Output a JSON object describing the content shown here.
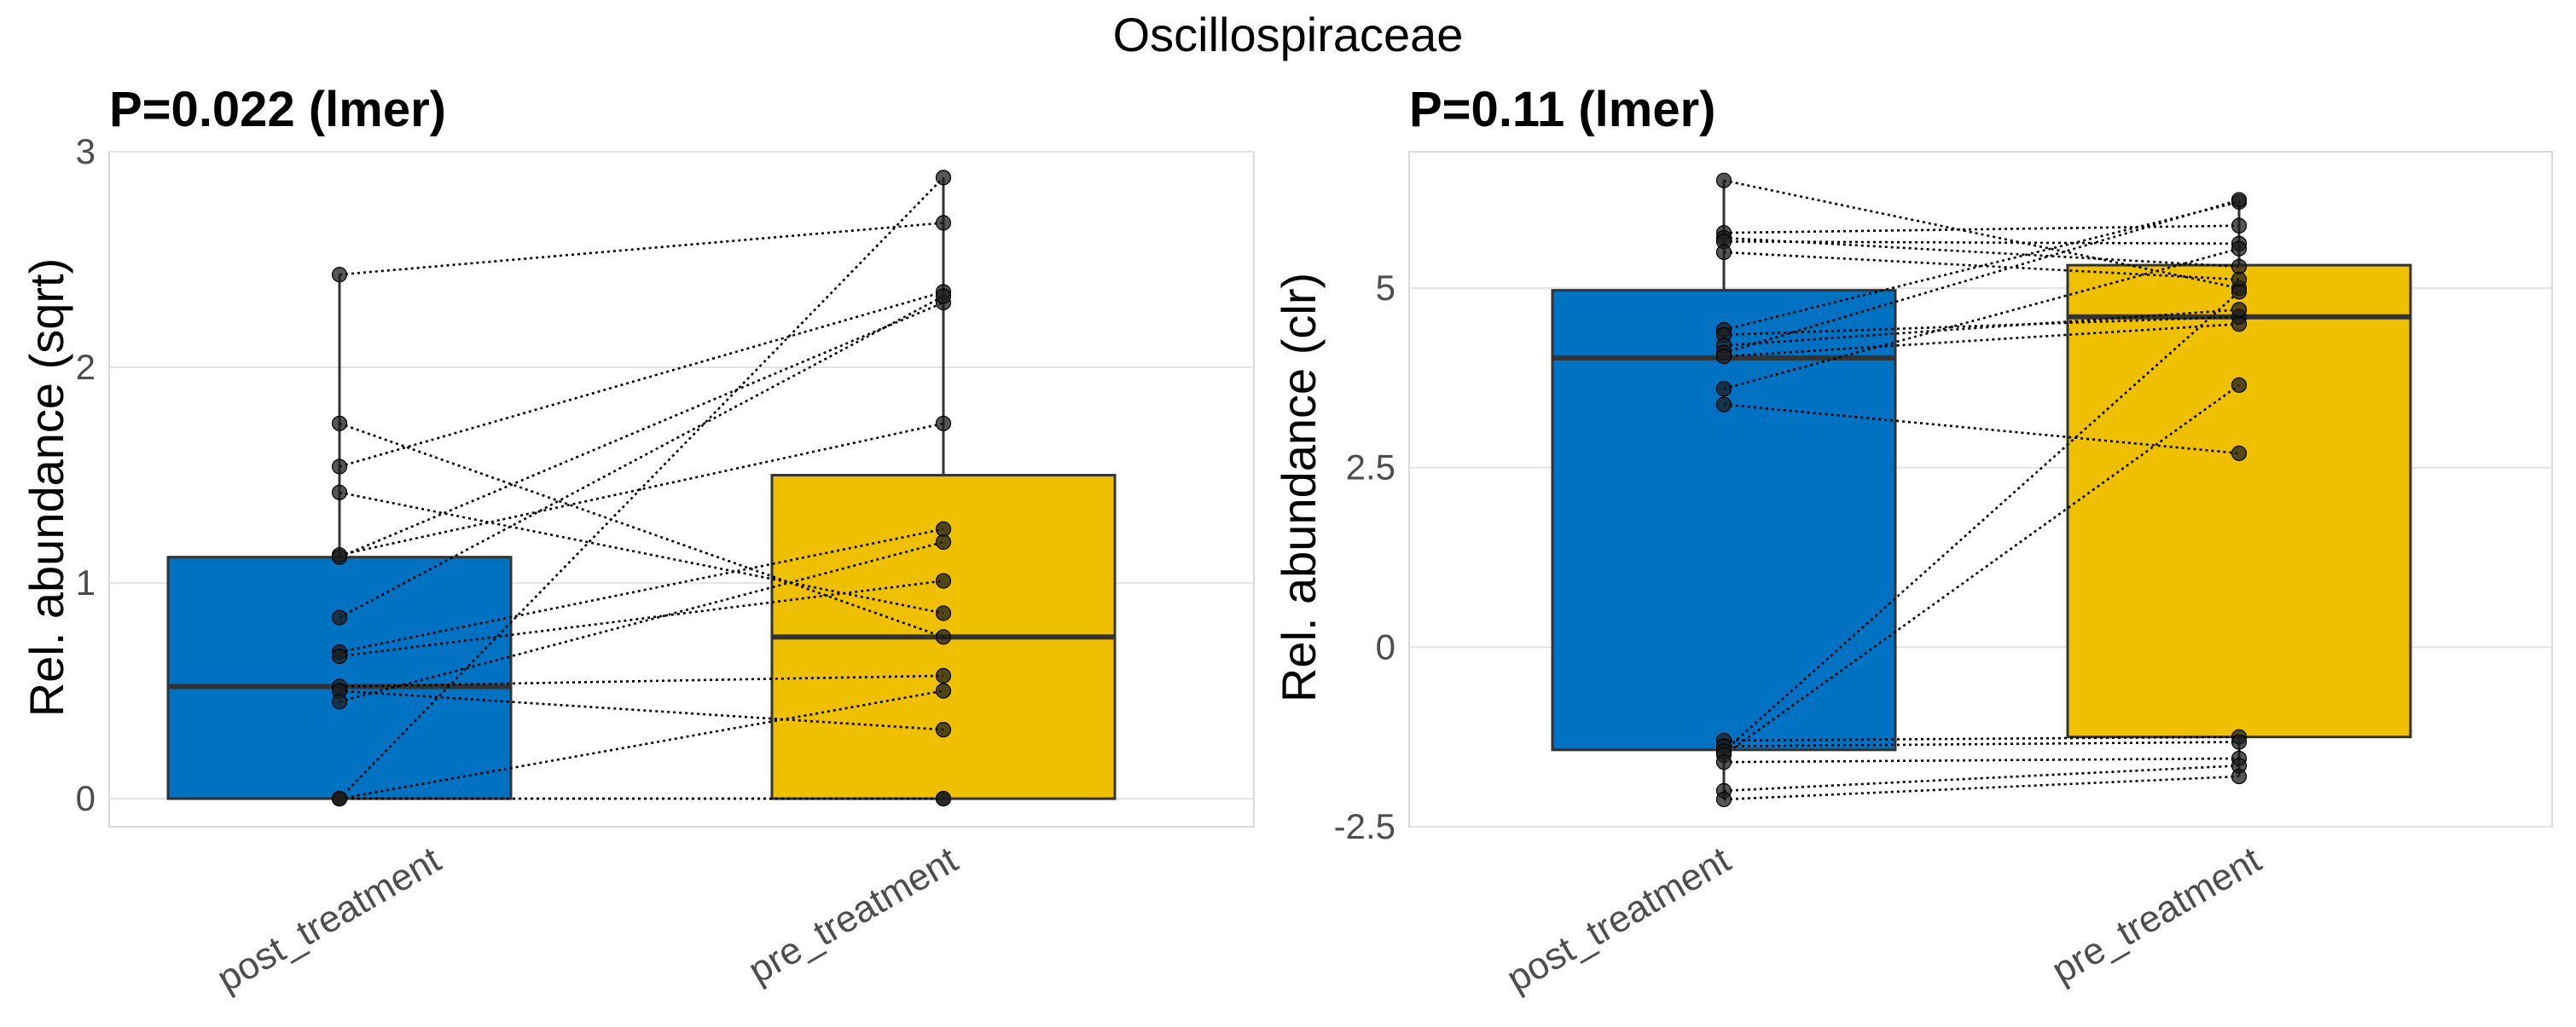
{
  "figure_title": "Oscillospiraceae",
  "chart_data": [
    {
      "type": "box",
      "title": "P=0.022 (lmer)",
      "xlabel": "",
      "ylabel": "Rel. abundance (sqrt)",
      "ylim": [
        -0.13,
        3.0
      ],
      "yticks": [
        0,
        1,
        2,
        3
      ],
      "ytick_labels": [
        "0",
        "1",
        "2",
        "3"
      ],
      "grid": true,
      "categories": [
        "post_treatment",
        "pre_treatment"
      ],
      "colors": [
        "#0072C1",
        "#EEC000"
      ],
      "boxes": [
        {
          "name": "post_treatment",
          "q1": 0.0,
          "median": 0.52,
          "q3": 1.12,
          "whisker_low": 0.0,
          "whisker_high": 2.43
        },
        {
          "name": "pre_treatment",
          "q1": 0.0,
          "median": 0.75,
          "q3": 1.5,
          "whisker_low": 0.0,
          "whisker_high": 2.88
        }
      ],
      "pairs": [
        [
          2.43,
          2.67
        ],
        [
          1.74,
          0.75
        ],
        [
          1.54,
          2.35
        ],
        [
          1.42,
          0.86
        ],
        [
          1.13,
          1.74
        ],
        [
          1.12,
          2.3
        ],
        [
          0.84,
          2.33
        ],
        [
          0.68,
          1.25
        ],
        [
          0.66,
          1.01
        ],
        [
          0.52,
          0.57
        ],
        [
          0.5,
          0.32
        ],
        [
          0.45,
          1.19
        ],
        [
          0.0,
          0.0
        ],
        [
          0.0,
          0.0
        ],
        [
          0.0,
          0.5
        ],
        [
          0.0,
          2.88
        ]
      ]
    },
    {
      "type": "box",
      "title": "P=0.11 (lmer)",
      "xlabel": "",
      "ylabel": "Rel. abundance (clr)",
      "ylim": [
        -2.5,
        6.9
      ],
      "yticks": [
        -2.5,
        0,
        2.5,
        5
      ],
      "ytick_labels": [
        "-2.5",
        "0",
        "2.5",
        "5"
      ],
      "grid": true,
      "categories": [
        "post_treatment",
        "pre_treatment"
      ],
      "colors": [
        "#0072C1",
        "#EEC000"
      ],
      "boxes": [
        {
          "name": "post_treatment",
          "q1": -1.43,
          "median": 4.03,
          "q3": 4.97,
          "whisker_low": -2.12,
          "whisker_high": 6.5
        },
        {
          "name": "pre_treatment",
          "q1": -1.25,
          "median": 4.6,
          "q3": 5.32,
          "whisker_low": -1.8,
          "whisker_high": 6.23
        }
      ],
      "pairs": [
        [
          6.5,
          5.0
        ],
        [
          5.77,
          5.87
        ],
        [
          5.7,
          5.3
        ],
        [
          5.65,
          5.62
        ],
        [
          5.5,
          5.12
        ],
        [
          4.42,
          6.2
        ],
        [
          4.35,
          4.6
        ],
        [
          4.2,
          4.7
        ],
        [
          4.1,
          6.23
        ],
        [
          4.05,
          4.5
        ],
        [
          3.6,
          5.55
        ],
        [
          3.38,
          2.7
        ],
        [
          -1.3,
          -1.25
        ],
        [
          -1.38,
          -1.32
        ],
        [
          -1.45,
          4.95
        ],
        [
          -1.5,
          3.65
        ],
        [
          -1.6,
          -1.55
        ],
        [
          -2.0,
          -1.65
        ],
        [
          -2.12,
          -1.8
        ]
      ]
    }
  ]
}
